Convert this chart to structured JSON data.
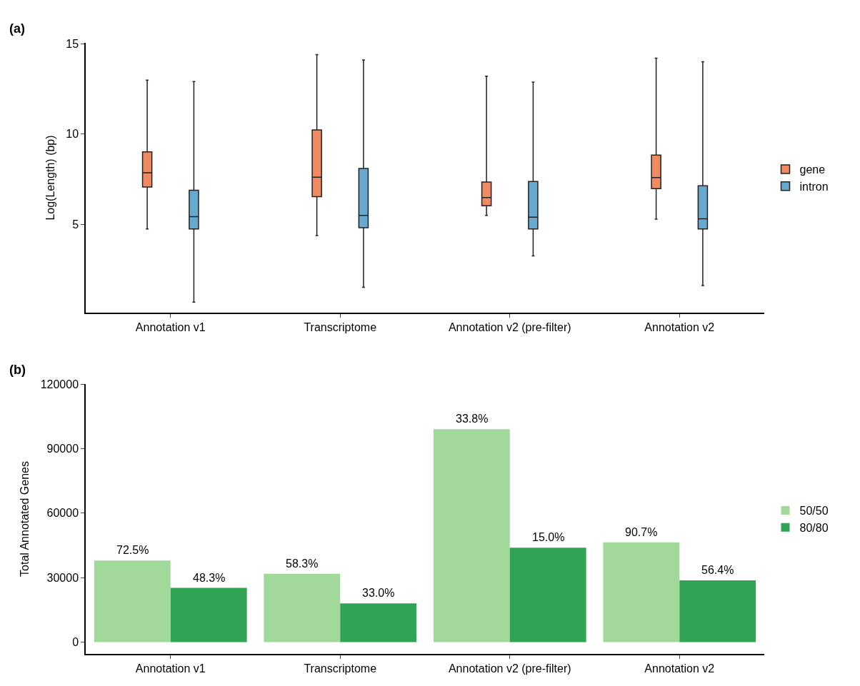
{
  "chart_data": [
    {
      "type": "box",
      "ylabel": "Log(Length) (bp)",
      "categories": [
        "Annotation v1",
        "Transcriptome",
        "Annotation v2 (pre-filter)",
        "Annotation v2"
      ],
      "ylim": [
        0.1,
        15.05
      ],
      "yticks": [
        5,
        10,
        15
      ],
      "grid": false,
      "legend": "right",
      "annotations": [
        "(a)"
      ],
      "series": [
        {
          "name": "gene",
          "color": "#ef8a62",
          "boxes": [
            {
              "low": 4.74,
              "q1": 7.06,
              "median": 7.85,
              "q3": 9.01,
              "high": 12.98
            },
            {
              "low": 4.37,
              "q1": 6.53,
              "median": 7.6,
              "q3": 10.22,
              "high": 14.4
            },
            {
              "low": 5.49,
              "q1": 6.02,
              "median": 6.48,
              "q3": 7.34,
              "high": 13.2
            },
            {
              "low": 5.28,
              "q1": 6.97,
              "median": 7.58,
              "q3": 8.83,
              "high": 14.2
            }
          ]
        },
        {
          "name": "intron",
          "color": "#67a9cf",
          "boxes": [
            {
              "low": 0.68,
              "q1": 4.74,
              "median": 5.42,
              "q3": 6.88,
              "high": 12.9
            },
            {
              "low": 1.5,
              "q1": 4.81,
              "median": 5.49,
              "q3": 8.09,
              "high": 14.1
            },
            {
              "low": 3.24,
              "q1": 4.74,
              "median": 5.39,
              "q3": 7.37,
              "high": 12.87
            },
            {
              "low": 1.6,
              "q1": 4.74,
              "median": 5.3,
              "q3": 7.13,
              "high": 14.0
            }
          ]
        }
      ]
    },
    {
      "type": "bar",
      "ylabel": "Total Annotated Genes",
      "categories": [
        "Annotation v1",
        "Transcriptome",
        "Annotation v2 (pre-filter)",
        "Annotation v2"
      ],
      "ylim": [
        -5500,
        120000
      ],
      "yticks": [
        0,
        30000,
        60000,
        90000,
        120000
      ],
      "grid": false,
      "legend": "right",
      "annotations": [
        "(b)",
        {
          "text": "72.5%",
          "x": "Annotation v1",
          "y": 37900
        },
        {
          "text": "48.3%",
          "x": "Annotation v1",
          "y": 25200
        },
        {
          "text": "58.3%",
          "x": "Transcriptome",
          "y": 31800
        },
        {
          "text": "33.0%",
          "x": "Transcriptome",
          "y": 18000
        },
        {
          "text": "33.8%",
          "x": "Annotation v2 (pre-filter)",
          "y": 99000
        },
        {
          "text": "15.0%",
          "x": "Annotation v2 (pre-filter)",
          "y": 43900
        },
        {
          "text": "90.7%",
          "x": "Annotation v2",
          "y": 46400
        },
        {
          "text": "56.4%",
          "x": "Annotation v2",
          "y": 28700
        }
      ],
      "series": [
        {
          "name": "50/50",
          "color": "#a1d99b",
          "values": [
            37900,
            31800,
            99000,
            46400
          ]
        },
        {
          "name": "80/80",
          "color": "#31a354",
          "values": [
            25200,
            18000,
            43900,
            28700
          ]
        }
      ]
    }
  ]
}
